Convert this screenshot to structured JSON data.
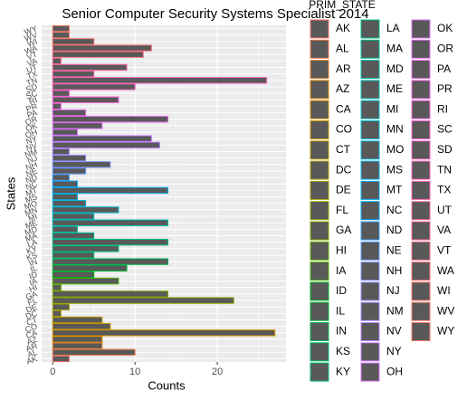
{
  "chart_data": {
    "type": "bar",
    "orientation": "horizontal",
    "title": "Senior Computer Security Systems Specialist 2014",
    "x_label": "Counts",
    "y_label": "States",
    "legend_title": "PRIM_STATE",
    "categories": [
      "AK",
      "AL",
      "AR",
      "AZ",
      "CA",
      "CO",
      "CT",
      "DC",
      "DE",
      "FL",
      "GA",
      "HI",
      "IA",
      "ID",
      "IL",
      "IN",
      "KS",
      "KY",
      "LA",
      "MA",
      "MD",
      "ME",
      "MI",
      "MN",
      "MO",
      "MS",
      "MT",
      "NC",
      "ND",
      "NE",
      "NH",
      "NJ",
      "NM",
      "NV",
      "NY",
      "OH",
      "OK",
      "OR",
      "PA",
      "PR",
      "RI",
      "SC",
      "SD",
      "TN",
      "TX",
      "UT",
      "VA",
      "VT",
      "WA",
      "WI",
      "WV",
      "WY"
    ],
    "values": [
      2,
      10,
      6,
      6,
      27,
      7,
      6,
      1,
      2,
      22,
      14,
      1,
      8,
      5,
      9,
      14,
      5,
      8,
      14,
      5,
      3,
      14,
      5,
      8,
      4,
      3,
      14,
      3,
      2,
      4,
      7,
      4,
      2,
      13,
      12,
      3,
      6,
      14,
      4,
      1,
      8,
      2,
      10,
      26,
      5,
      9,
      1,
      11,
      12,
      5,
      2,
      2
    ],
    "colors": [
      "#F8766D",
      "#F27D52",
      "#EA8331",
      "#E08B00",
      "#D89000",
      "#CD9600",
      "#C09B00",
      "#B3A000",
      "#A3A500",
      "#93AA00",
      "#7FAE00",
      "#68B200",
      "#4CB500",
      "#00B81F",
      "#00BA38",
      "#00BC56",
      "#00BE6C",
      "#00BF7D",
      "#00C08B",
      "#00C19A",
      "#00C1A7",
      "#00C0B8",
      "#00BFC4",
      "#00BDD0",
      "#00BADE",
      "#00B6EB",
      "#00B0F6",
      "#00A9FF",
      "#35A2FF",
      "#619CFF",
      "#7F96FF",
      "#9590FF",
      "#A58AFF",
      "#B983FF",
      "#C77CFF",
      "#D575FE",
      "#DF70F8",
      "#E76BF3",
      "#EF67EB",
      "#F564E3",
      "#FA62DB",
      "#FD61D1",
      "#FF61C7",
      "#FF62BC",
      "#FF64B0",
      "#FF67A4",
      "#FF6A98",
      "#FD6F87",
      "#FA7279",
      "#F8766D",
      "#F57A6A",
      "#F37B66"
    ],
    "bar_fill": "#595959",
    "xlim": [
      -1.35,
      28.35
    ],
    "xticks": [
      0,
      10,
      20
    ],
    "grid": true
  }
}
